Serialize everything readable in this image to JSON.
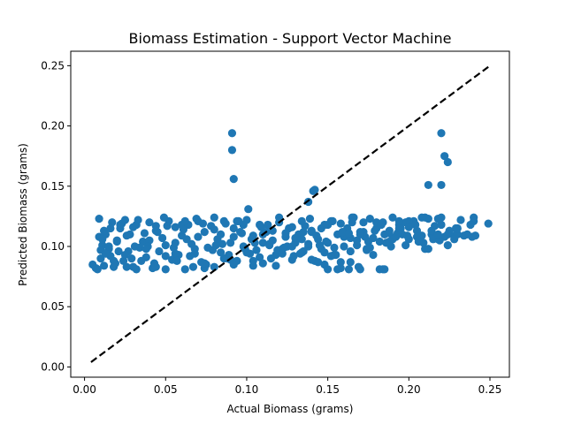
{
  "chart_data": {
    "type": "scatter",
    "title": "Biomass Estimation - Support Vector Machine",
    "xlabel": "Actual Biomass (grams)",
    "ylabel": "Predicted Biomass (grams)",
    "xlim": [
      -0.0085,
      0.262
    ],
    "ylim": [
      -0.0085,
      0.262
    ],
    "x_ticks": [
      "0.00",
      "0.05",
      "0.10",
      "0.15",
      "0.20",
      "0.25"
    ],
    "y_ticks": [
      "0.00",
      "0.05",
      "0.10",
      "0.15",
      "0.20",
      "0.25"
    ],
    "grid": false,
    "marker_color": "#1f77b4",
    "reference_line": {
      "style": "dashed",
      "color": "#000000",
      "x": [
        0.004,
        0.249
      ],
      "y": [
        0.004,
        0.249
      ]
    },
    "series": [
      {
        "x": [
          0.005,
          0.007,
          0.008,
          0.009,
          0.01,
          0.011,
          0.012,
          0.013,
          0.014,
          0.015,
          0.016,
          0.017,
          0.018,
          0.02,
          0.022,
          0.024,
          0.025,
          0.027,
          0.028,
          0.03,
          0.032,
          0.034,
          0.036,
          0.038,
          0.04,
          0.042,
          0.044,
          0.046,
          0.048,
          0.05,
          0.052,
          0.054,
          0.056,
          0.058,
          0.06,
          0.062,
          0.064,
          0.066,
          0.068,
          0.07,
          0.072,
          0.074,
          0.076,
          0.078,
          0.08,
          0.082,
          0.084,
          0.086,
          0.088,
          0.09,
          0.092,
          0.094,
          0.096,
          0.098,
          0.1,
          0.102,
          0.104,
          0.106,
          0.108,
          0.11,
          0.112,
          0.114,
          0.116,
          0.118,
          0.12,
          0.122,
          0.124,
          0.126,
          0.128,
          0.13,
          0.132,
          0.134,
          0.136,
          0.138,
          0.14,
          0.142,
          0.144,
          0.146,
          0.148,
          0.15,
          0.152,
          0.154,
          0.156,
          0.158,
          0.16,
          0.162,
          0.164,
          0.166,
          0.168,
          0.17,
          0.172,
          0.174,
          0.176,
          0.178,
          0.18,
          0.182,
          0.184,
          0.186,
          0.188,
          0.19,
          0.192,
          0.194,
          0.196,
          0.198,
          0.2,
          0.203,
          0.205,
          0.208,
          0.21,
          0.212,
          0.214,
          0.216,
          0.218,
          0.22,
          0.222,
          0.225,
          0.228,
          0.232,
          0.236,
          0.24,
          0.241,
          0.249,
          0.01,
          0.015,
          0.02,
          0.025,
          0.03,
          0.035,
          0.04,
          0.045,
          0.05,
          0.055,
          0.06,
          0.065,
          0.07,
          0.075,
          0.08,
          0.085,
          0.09,
          0.095,
          0.1,
          0.105,
          0.11,
          0.115,
          0.12,
          0.125,
          0.13,
          0.135,
          0.14,
          0.145,
          0.15,
          0.155,
          0.16,
          0.165,
          0.17,
          0.175,
          0.18,
          0.185,
          0.19,
          0.195,
          0.2,
          0.205,
          0.21,
          0.215,
          0.22,
          0.23,
          0.24,
          0.012,
          0.018,
          0.022,
          0.026,
          0.031,
          0.037,
          0.043,
          0.049,
          0.056,
          0.061,
          0.067,
          0.073,
          0.079,
          0.084,
          0.089,
          0.094,
          0.099,
          0.104,
          0.109,
          0.114,
          0.119,
          0.124,
          0.129,
          0.134,
          0.139,
          0.144,
          0.149,
          0.154,
          0.159,
          0.164,
          0.169,
          0.174,
          0.179,
          0.184,
          0.189,
          0.194,
          0.199,
          0.204,
          0.209,
          0.214,
          0.219,
          0.224,
          0.229,
          0.234,
          0.239,
          0.009,
          0.013,
          0.019,
          0.023,
          0.029,
          0.033,
          0.039,
          0.044,
          0.051,
          0.057,
          0.063,
          0.069,
          0.074,
          0.081,
          0.087,
          0.092,
          0.097,
          0.103,
          0.108,
          0.113,
          0.118,
          0.123,
          0.128,
          0.133,
          0.138,
          0.143,
          0.148,
          0.153,
          0.158,
          0.163,
          0.168,
          0.173,
          0.178,
          0.183,
          0.188,
          0.193,
          0.198,
          0.208,
          0.218,
          0.228,
          0.238,
          0.011,
          0.016,
          0.021,
          0.026,
          0.032,
          0.038,
          0.044,
          0.05,
          0.056,
          0.062,
          0.068,
          0.074,
          0.08,
          0.086,
          0.092,
          0.098,
          0.104,
          0.11,
          0.116,
          0.122,
          0.128,
          0.134,
          0.14,
          0.146,
          0.152,
          0.158,
          0.164,
          0.17,
          0.176,
          0.182,
          0.188,
          0.194,
          0.2,
          0.206,
          0.212,
          0.218,
          0.224,
          0.23,
          0.091,
          0.091,
          0.092,
          0.101,
          0.138,
          0.142,
          0.141,
          0.212,
          0.22,
          0.22,
          0.222,
          0.224,
          0.135,
          0.15,
          0.156,
          0.163,
          0.148,
          0.165,
          0.172,
          0.185
        ],
        "y": [
          0.085,
          0.082,
          0.081,
          0.108,
          0.09,
          0.101,
          0.084,
          0.11,
          0.095,
          0.098,
          0.092,
          0.12,
          0.083,
          0.105,
          0.115,
          0.088,
          0.122,
          0.096,
          0.11,
          0.083,
          0.118,
          0.099,
          0.104,
          0.091,
          0.12,
          0.082,
          0.113,
          0.096,
          0.107,
          0.101,
          0.121,
          0.089,
          0.116,
          0.093,
          0.109,
          0.081,
          0.118,
          0.102,
          0.094,
          0.121,
          0.087,
          0.112,
          0.099,
          0.117,
          0.083,
          0.106,
          0.095,
          0.121,
          0.09,
          0.103,
          0.115,
          0.088,
          0.112,
          0.1,
          0.122,
          0.094,
          0.109,
          0.097,
          0.118,
          0.086,
          0.112,
          0.101,
          0.105,
          0.093,
          0.12,
          0.098,
          0.108,
          0.115,
          0.089,
          0.103,
          0.11,
          0.095,
          0.117,
          0.1,
          0.112,
          0.088,
          0.106,
          0.098,
          0.085,
          0.103,
          0.121,
          0.093,
          0.11,
          0.082,
          0.1,
          0.115,
          0.096,
          0.124,
          0.105,
          0.081,
          0.112,
          0.098,
          0.123,
          0.107,
          0.115,
          0.081,
          0.12,
          0.103,
          0.111,
          0.124,
          0.108,
          0.118,
          0.11,
          0.101,
          0.106,
          0.121,
          0.113,
          0.109,
          0.098,
          0.123,
          0.11,
          0.117,
          0.106,
          0.124,
          0.108,
          0.113,
          0.109,
          0.122,
          0.11,
          0.124,
          0.109,
          0.119,
          0.097,
          0.1,
          0.104,
          0.093,
          0.116,
          0.088,
          0.105,
          0.112,
          0.081,
          0.099,
          0.118,
          0.092,
          0.108,
          0.085,
          0.114,
          0.102,
          0.089,
          0.121,
          0.095,
          0.103,
          0.11,
          0.09,
          0.124,
          0.1,
          0.107,
          0.096,
          0.113,
          0.101,
          0.118,
          0.093,
          0.108,
          0.124,
          0.112,
          0.104,
          0.12,
          0.11,
          0.106,
          0.115,
          0.121,
          0.108,
          0.124,
          0.106,
          0.118,
          0.11,
          0.121,
          0.113,
          0.088,
          0.118,
          0.083,
          0.1,
          0.111,
          0.086,
          0.124,
          0.094,
          0.114,
          0.083,
          0.119,
          0.097,
          0.11,
          0.093,
          0.121,
          0.098,
          0.088,
          0.116,
          0.102,
          0.097,
          0.111,
          0.092,
          0.106,
          0.123,
          0.087,
          0.104,
          0.099,
          0.112,
          0.107,
          0.083,
          0.097,
          0.113,
          0.081,
          0.1,
          0.115,
          0.109,
          0.118,
          0.103,
          0.113,
          0.105,
          0.11,
          0.115,
          0.109,
          0.108,
          0.123,
          0.094,
          0.086,
          0.119,
          0.09,
          0.122,
          0.1,
          0.083,
          0.117,
          0.088,
          0.106,
          0.123,
          0.082,
          0.101,
          0.119,
          0.085,
          0.111,
          0.106,
          0.091,
          0.118,
          0.084,
          0.099,
          0.116,
          0.094,
          0.102,
          0.109,
          0.095,
          0.121,
          0.087,
          0.111,
          0.101,
          0.108,
          0.093,
          0.118,
          0.104,
          0.111,
          0.12,
          0.124,
          0.11,
          0.106,
          0.118,
          0.106,
          0.115,
          0.096,
          0.109,
          0.081,
          0.098,
          0.117,
          0.092,
          0.103,
          0.121,
          0.098,
          0.086,
          0.124,
          0.09,
          0.108,
          0.118,
          0.084,
          0.103,
          0.113,
          0.094,
          0.1,
          0.121,
          0.089,
          0.115,
          0.092,
          0.119,
          0.087,
          0.11,
          0.099,
          0.104,
          0.113,
          0.121,
          0.116,
          0.104,
          0.098,
          0.123,
          0.101,
          0.115,
          0.194,
          0.18,
          0.156,
          0.131,
          0.137,
          0.147,
          0.146,
          0.151,
          0.194,
          0.151,
          0.175,
          0.17,
          0.112,
          0.081,
          0.081,
          0.081,
          0.118,
          0.12,
          0.12,
          0.081
        ]
      }
    ]
  }
}
